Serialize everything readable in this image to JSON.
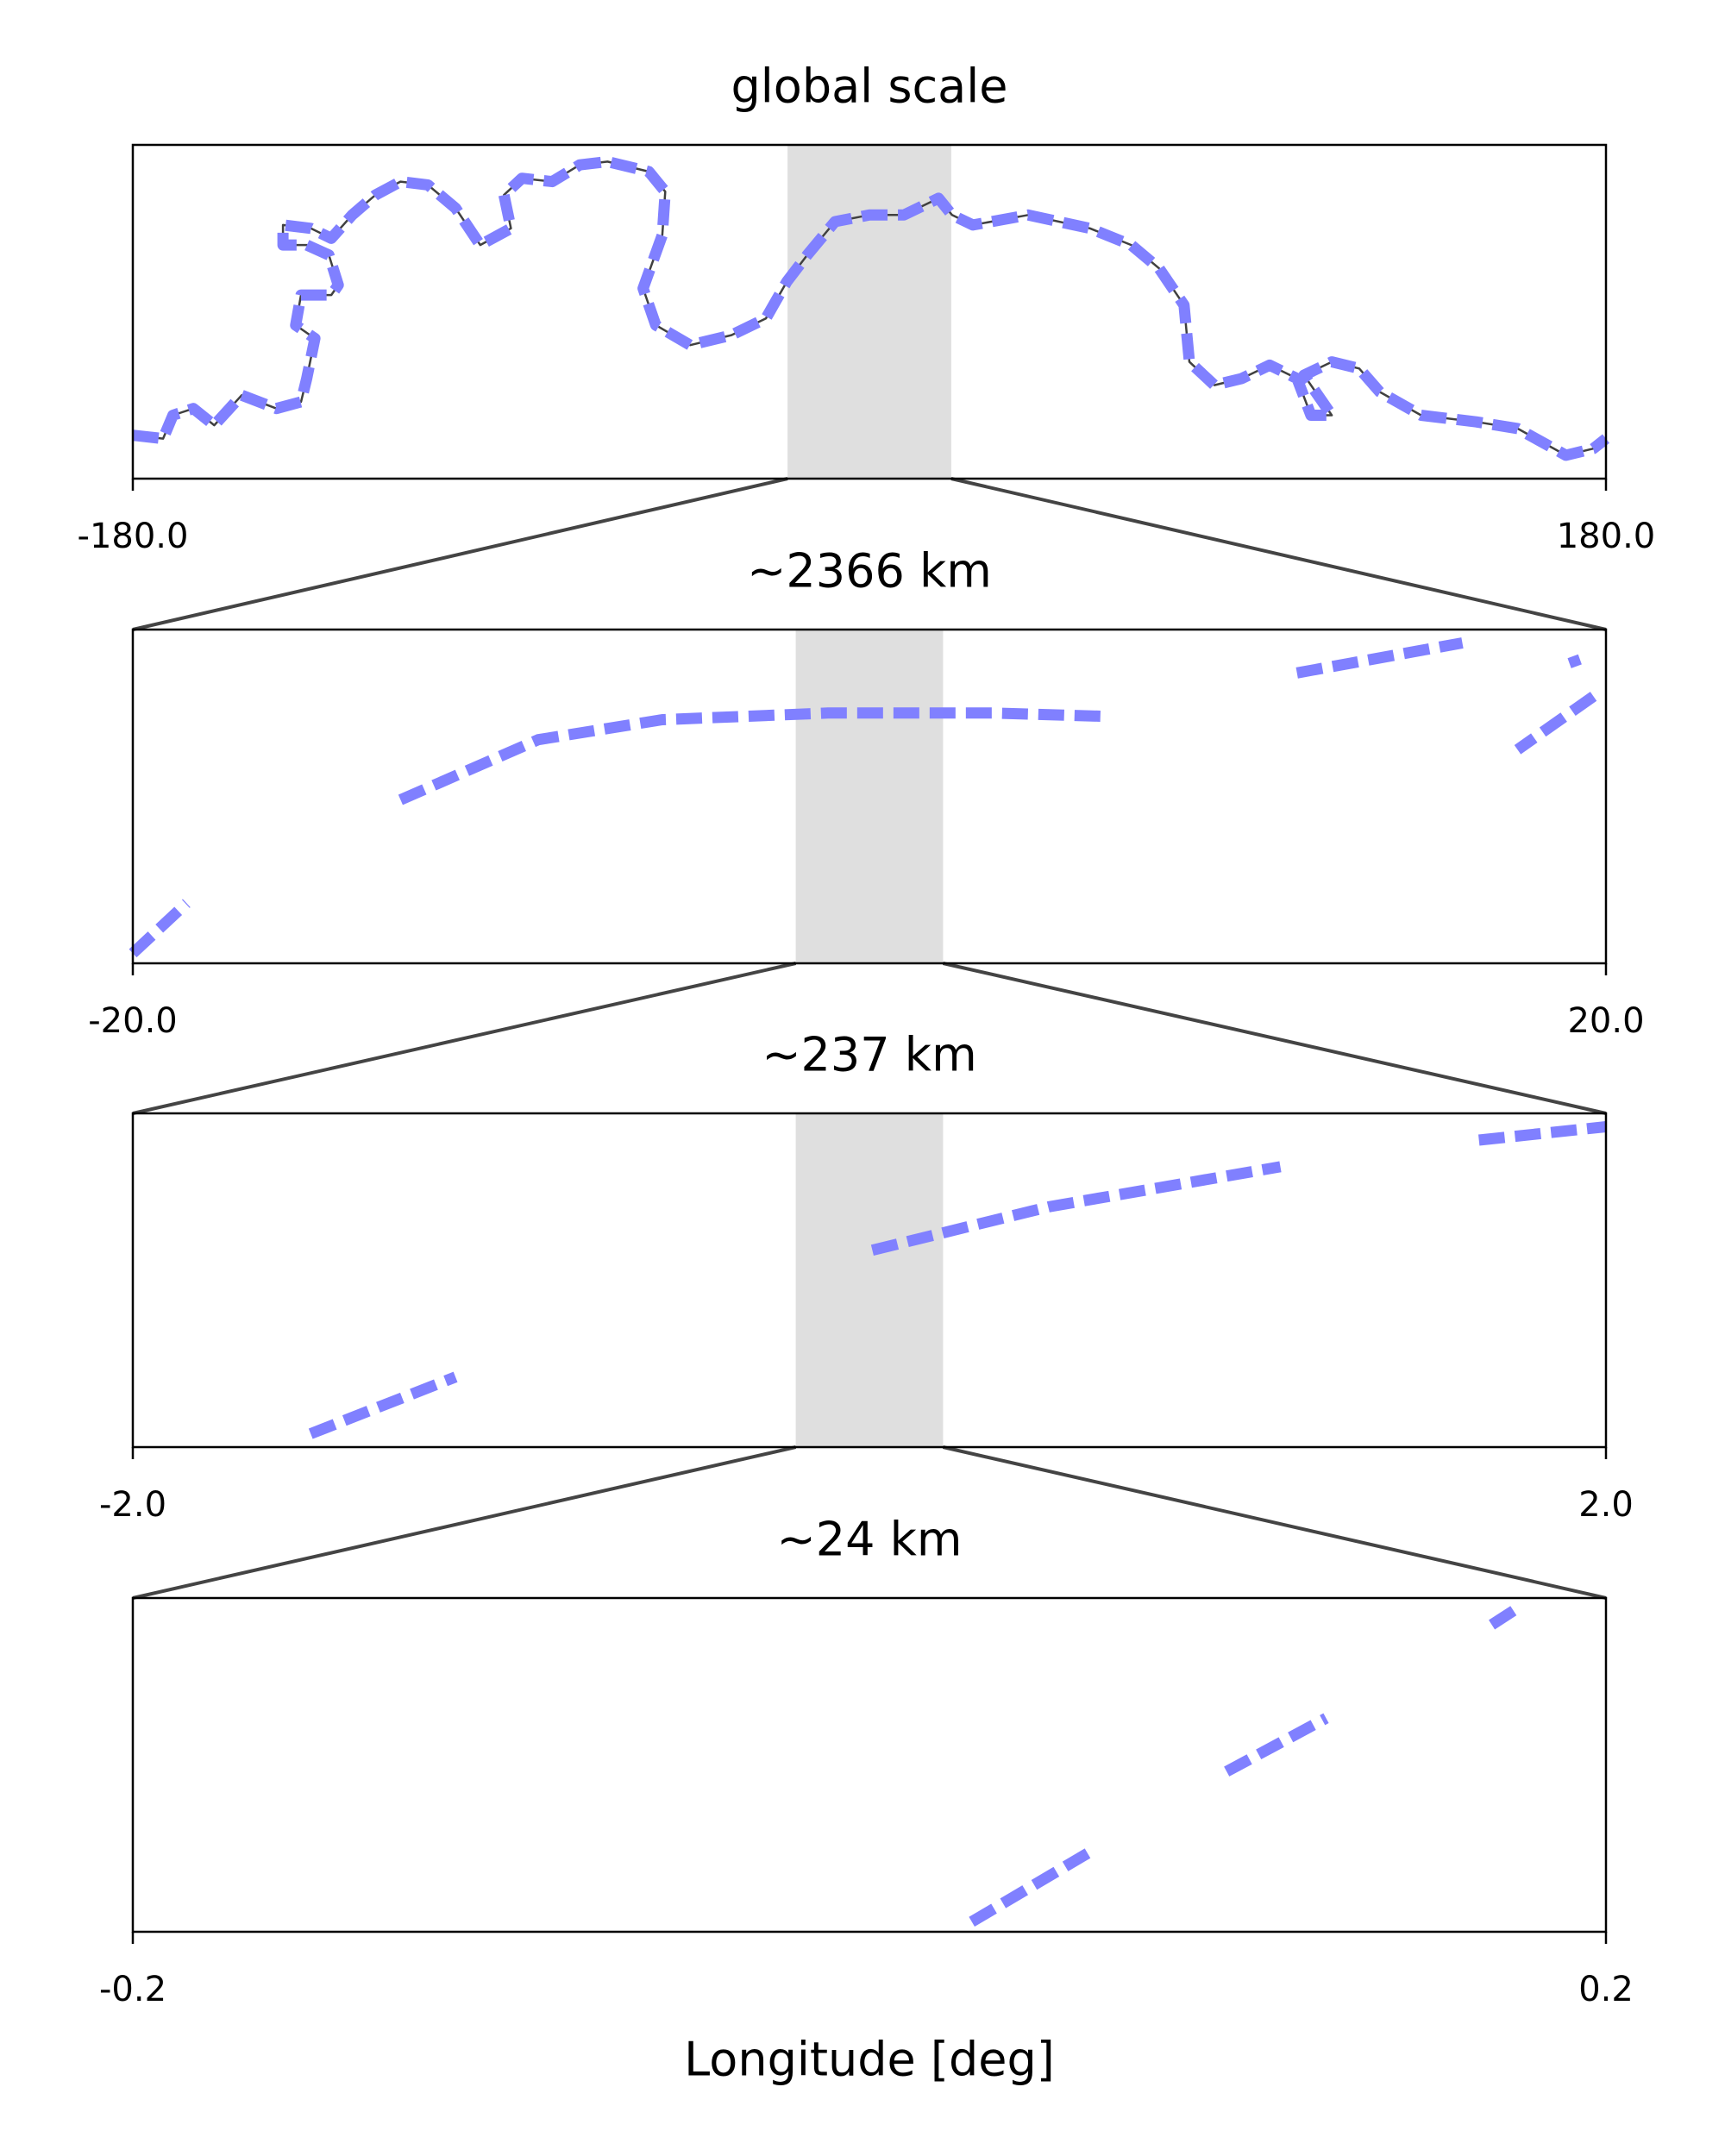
{
  "chart_data": [
    {
      "type": "line",
      "title": "global scale",
      "xlim": [
        -180,
        180
      ],
      "ylim": [
        0,
        1
      ],
      "xticks": [
        {
          "value": -180,
          "label": "-180.0"
        },
        {
          "value": 180,
          "label": "180.0"
        }
      ],
      "x": [
        -180,
        -172.6,
        -170.2,
        -165.2,
        -160.1,
        -153.4,
        -144.9,
        -138.9,
        -137.5,
        -135.5,
        -140.2,
        -138.9,
        -131.5,
        -129.8,
        -132.1,
        -137.5,
        -143.3,
        -143.3,
        -136.5,
        -131.5,
        -126.4,
        -120.7,
        -114.6,
        -107.9,
        -101.1,
        -95.1,
        -87.6,
        -89.3,
        -84.9,
        -77.5,
        -70.8,
        -64.0,
        -53.9,
        -49.9,
        -50.6,
        -55.3,
        -52.2,
        -43.8,
        -33.7,
        -25.3,
        -20.2,
        -15.2,
        -8.4,
        0,
        8.4,
        16.9,
        20.2,
        25.3,
        38.8,
        53.9,
        64.0,
        70.8,
        76.9,
        78.2,
        84.3,
        91.0,
        97.8,
        104.5,
        107.9,
        113.0,
        106.2,
        113.0,
        119.7,
        124.7,
        134.8,
        148.3,
        158.4,
        170.2,
        176.9,
        180
      ],
      "values": [
        0.13,
        0.12,
        0.19,
        0.21,
        0.16,
        0.25,
        0.21,
        0.23,
        0.3,
        0.42,
        0.46,
        0.55,
        0.55,
        0.58,
        0.67,
        0.7,
        0.7,
        0.76,
        0.75,
        0.72,
        0.79,
        0.85,
        0.89,
        0.88,
        0.81,
        0.7,
        0.75,
        0.85,
        0.9,
        0.89,
        0.94,
        0.95,
        0.92,
        0.86,
        0.73,
        0.57,
        0.46,
        0.4,
        0.43,
        0.48,
        0.59,
        0.67,
        0.77,
        0.79,
        0.79,
        0.84,
        0.79,
        0.76,
        0.79,
        0.75,
        0.7,
        0.63,
        0.52,
        0.35,
        0.28,
        0.3,
        0.34,
        0.3,
        0.19,
        0.19,
        0.31,
        0.35,
        0.33,
        0.26,
        0.19,
        0.17,
        0.15,
        0.07,
        0.09,
        0.12
      ],
      "color": "#8080ff",
      "outline_color": "#404040"
    },
    {
      "type": "line",
      "title": "~2366 km",
      "xlim": [
        -20,
        20
      ],
      "ylim": [
        0,
        1
      ],
      "xticks": [
        {
          "value": -20,
          "label": "-20.0"
        },
        {
          "value": 20,
          "label": "20.0"
        }
      ],
      "x": [
        -20,
        -18.54,
        null,
        -12.73,
        -8.99,
        -5.62,
        -1.12,
        3.37,
        6.37,
        null,
        11.61,
        16.1,
        null,
        19.1,
        19.2,
        null,
        19.66,
        17.6
      ],
      "values": [
        0.03,
        0.18,
        null,
        0.49,
        0.67,
        0.73,
        0.75,
        0.75,
        0.74,
        null,
        0.87,
        0.96,
        null,
        0.92,
        0.89,
        null,
        0.8,
        0.64
      ],
      "color": "#8080ff"
    },
    {
      "type": "line",
      "title": "~237 km",
      "xlim": [
        -2,
        2
      ],
      "ylim": [
        0,
        1
      ],
      "xticks": [
        {
          "value": -2,
          "label": "-2.0"
        },
        {
          "value": 2,
          "label": "2.0"
        }
      ],
      "x": [
        -1.517,
        -1.124,
        null,
        0.008,
        0.487,
        1.116,
        null,
        1.655,
        2.0
      ],
      "values": [
        0.04,
        0.21,
        null,
        0.59,
        0.72,
        0.84,
        null,
        0.92,
        0.96
      ],
      "color": "#8080ff"
    },
    {
      "type": "line",
      "title": "~24 km",
      "xlabel": "Longitude [deg]",
      "xlim": [
        -0.2,
        0.2
      ],
      "ylim": [
        0,
        1
      ],
      "xticks": [
        {
          "value": -0.2,
          "label": "-0.2"
        },
        {
          "value": 0.2,
          "label": "0.2"
        }
      ],
      "x": [
        0.0278,
        0.06,
        null,
        0.097,
        0.124,
        null,
        0.169,
        0.176
      ],
      "values": [
        0.03,
        0.24,
        null,
        0.48,
        0.64,
        null,
        0.92,
        0.97
      ],
      "color": "#8080ff"
    }
  ]
}
